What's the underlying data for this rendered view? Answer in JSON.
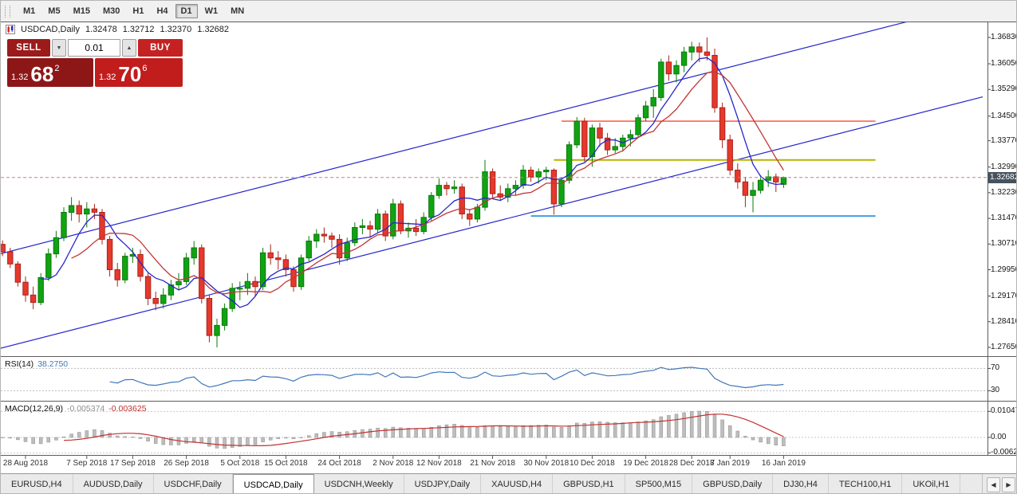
{
  "toolbar": {
    "timeframes": [
      "M1",
      "M5",
      "M15",
      "M30",
      "H1",
      "H4",
      "D1",
      "W1",
      "MN"
    ],
    "active_timeframe": "D1"
  },
  "window": {
    "symbol_title": "USDCAD,Daily",
    "ohlc": {
      "open": "1.32478",
      "high": "1.32712",
      "low": "1.32370",
      "close": "1.32682"
    }
  },
  "one_click": {
    "sell_label": "SELL",
    "buy_label": "BUY",
    "volume": "0.01",
    "sell_price": {
      "base": "1.32",
      "big": "68",
      "pip": "2"
    },
    "buy_price": {
      "base": "1.32",
      "big": "70",
      "pip": "6"
    }
  },
  "icons": {
    "spinner_down": "▼",
    "spinner_up": "▲",
    "tab_prev": "◀",
    "tab_next": "▶"
  },
  "price_scale": {
    "labels": [
      "1.36830",
      "1.36050",
      "1.35290",
      "1.34500",
      "1.33770",
      "1.32990",
      "1.32230",
      "1.31470",
      "1.30710",
      "1.29950",
      "1.29170",
      "1.28410",
      "1.27650"
    ],
    "current": "1.32682"
  },
  "rsi": {
    "name": "RSI(14)",
    "value": "38.2750",
    "scale": [
      "70",
      "30"
    ],
    "levels": [
      70,
      30
    ]
  },
  "macd": {
    "name": "MACD(12,26,9)",
    "values": [
      "-0.005374",
      "-0.003625"
    ],
    "scale": [
      "0.010474",
      "0.00",
      "-0.006218"
    ]
  },
  "tabs": {
    "items": [
      "EURUSD,H4",
      "AUDUSD,Daily",
      "USDCHF,Daily",
      "USDCAD,Daily",
      "USDCNH,Weekly",
      "USDJPY,Daily",
      "XAUUSD,H4",
      "GBPUSD,H1",
      "SP500,M15",
      "GBPUSD,Daily",
      "DJ30,H4",
      "TECH100,H1",
      "UKOil,H1"
    ],
    "active": "USDCAD,Daily"
  },
  "colors": {
    "bull": "#10a312",
    "bull_border": "#0b7a0c",
    "bear": "#e6382c",
    "bear_border": "#a8241c",
    "ma_fast": "#2626c9",
    "ma_slow": "#c23636",
    "channel": "#2525cd",
    "ray_red": "#ff4636",
    "ray_olive": "#b7b400",
    "ray_blue": "#3f9fe8",
    "rsi_line": "#4177b8",
    "macd_hist": "#bdbdbd",
    "macd_hist_border": "#8f8f8f",
    "macd_signal": "#c23030",
    "badge_bg": "#45525e",
    "accent_sell": "#9b1b1b",
    "accent_buy": "#c42222",
    "panel_sell": "#8d1717",
    "panel_buy": "#c11d1d",
    "last_price_line": "#c98080"
  },
  "chart_data": {
    "type": "candlestick",
    "symbol": "USDCAD",
    "timeframe": "Daily",
    "y_axis": {
      "min": 1.2743,
      "max": 1.3723,
      "grid": false
    },
    "x_tick_labels": [
      {
        "index": 3,
        "text": "28 Aug 2018"
      },
      {
        "index": 11,
        "text": "7 Sep 2018"
      },
      {
        "index": 17,
        "text": "17 Sep 2018"
      },
      {
        "index": 24,
        "text": "26 Sep 2018"
      },
      {
        "index": 31,
        "text": "5 Oct 2018"
      },
      {
        "index": 37,
        "text": "15 Oct 2018"
      },
      {
        "index": 44,
        "text": "24 Oct 2018"
      },
      {
        "index": 51,
        "text": "2 Nov 2018"
      },
      {
        "index": 57,
        "text": "12 Nov 2018"
      },
      {
        "index": 64,
        "text": "21 Nov 2018"
      },
      {
        "index": 71,
        "text": "30 Nov 2018"
      },
      {
        "index": 77,
        "text": "10 Dec 2018"
      },
      {
        "index": 84,
        "text": "19 Dec 2018"
      },
      {
        "index": 90,
        "text": "28 Dec 2018"
      },
      {
        "index": 95,
        "text": "7 Jan 2019"
      },
      {
        "index": 102,
        "text": "16 Jan 2019"
      }
    ],
    "candles": [
      [
        1.307,
        1.3082,
        1.3035,
        1.3048
      ],
      [
        1.3048,
        1.306,
        1.3,
        1.3012
      ],
      [
        1.3012,
        1.302,
        1.2945,
        1.2958
      ],
      [
        1.2958,
        1.2975,
        1.29,
        1.292
      ],
      [
        1.292,
        1.2945,
        1.2878,
        1.2898
      ],
      [
        1.2898,
        1.2985,
        1.289,
        1.2972
      ],
      [
        1.2972,
        1.3058,
        1.2962,
        1.3042
      ],
      [
        1.3042,
        1.311,
        1.303,
        1.309
      ],
      [
        1.309,
        1.318,
        1.308,
        1.3165
      ],
      [
        1.3165,
        1.321,
        1.314,
        1.3185
      ],
      [
        1.3185,
        1.32,
        1.3135,
        1.316
      ],
      [
        1.316,
        1.3195,
        1.312,
        1.3175
      ],
      [
        1.3175,
        1.319,
        1.3145,
        1.3165
      ],
      [
        1.3165,
        1.3175,
        1.307,
        1.3085
      ],
      [
        1.3085,
        1.3095,
        1.2975,
        1.2995
      ],
      [
        1.2995,
        1.3015,
        1.2945,
        1.2965
      ],
      [
        1.2965,
        1.3045,
        1.2955,
        1.3035
      ],
      [
        1.3035,
        1.306,
        1.3015,
        1.304
      ],
      [
        1.304,
        1.3055,
        1.296,
        1.2975
      ],
      [
        1.2975,
        1.2985,
        1.289,
        1.291
      ],
      [
        1.291,
        1.293,
        1.2875,
        1.2895
      ],
      [
        1.2895,
        1.294,
        1.288,
        1.292
      ],
      [
        1.292,
        1.2965,
        1.2905,
        1.295
      ],
      [
        1.295,
        1.2985,
        1.2935,
        1.296
      ],
      [
        1.296,
        1.3045,
        1.295,
        1.303
      ],
      [
        1.303,
        1.308,
        1.301,
        1.306
      ],
      [
        1.306,
        1.307,
        1.2895,
        1.291
      ],
      [
        1.291,
        1.292,
        1.278,
        1.28
      ],
      [
        1.28,
        1.285,
        1.2765,
        1.283
      ],
      [
        1.283,
        1.2895,
        1.2815,
        1.288
      ],
      [
        1.288,
        1.2955,
        1.287,
        1.294
      ],
      [
        1.294,
        1.296,
        1.2905,
        1.294
      ],
      [
        1.294,
        1.2985,
        1.292,
        1.296
      ],
      [
        1.296,
        1.2975,
        1.2915,
        1.2945
      ],
      [
        1.2945,
        1.306,
        1.2935,
        1.3045
      ],
      [
        1.3045,
        1.307,
        1.301,
        1.303
      ],
      [
        1.303,
        1.305,
        1.2995,
        1.3025
      ],
      [
        1.3025,
        1.304,
        1.2975,
        1.2995
      ],
      [
        1.2995,
        1.3005,
        1.293,
        1.2945
      ],
      [
        1.2945,
        1.304,
        1.2935,
        1.303
      ],
      [
        1.303,
        1.3095,
        1.302,
        1.308
      ],
      [
        1.308,
        1.3115,
        1.306,
        1.31
      ],
      [
        1.31,
        1.312,
        1.3075,
        1.3095
      ],
      [
        1.3095,
        1.3105,
        1.306,
        1.3085
      ],
      [
        1.3085,
        1.31,
        1.301,
        1.303
      ],
      [
        1.303,
        1.309,
        1.302,
        1.3075
      ],
      [
        1.3075,
        1.3135,
        1.3065,
        1.312
      ],
      [
        1.312,
        1.3145,
        1.31,
        1.3125
      ],
      [
        1.3125,
        1.314,
        1.309,
        1.3115
      ],
      [
        1.3115,
        1.3175,
        1.3105,
        1.316
      ],
      [
        1.316,
        1.317,
        1.308,
        1.3095
      ],
      [
        1.3095,
        1.3205,
        1.3085,
        1.319
      ],
      [
        1.319,
        1.32,
        1.31,
        1.311
      ],
      [
        1.311,
        1.3135,
        1.309,
        1.3118
      ],
      [
        1.3118,
        1.3145,
        1.3095,
        1.3108
      ],
      [
        1.3108,
        1.3165,
        1.31,
        1.315
      ],
      [
        1.315,
        1.3225,
        1.314,
        1.3215
      ],
      [
        1.3215,
        1.3265,
        1.3205,
        1.3245
      ],
      [
        1.3245,
        1.3255,
        1.3215,
        1.3235
      ],
      [
        1.3235,
        1.326,
        1.322,
        1.324
      ],
      [
        1.324,
        1.325,
        1.3145,
        1.316
      ],
      [
        1.316,
        1.3175,
        1.3125,
        1.3145
      ],
      [
        1.3145,
        1.319,
        1.3135,
        1.318
      ],
      [
        1.318,
        1.332,
        1.317,
        1.3285
      ],
      [
        1.3285,
        1.3295,
        1.3205,
        1.322
      ],
      [
        1.322,
        1.3245,
        1.32,
        1.321
      ],
      [
        1.321,
        1.325,
        1.3195,
        1.3235
      ],
      [
        1.3235,
        1.326,
        1.3215,
        1.3245
      ],
      [
        1.3245,
        1.3305,
        1.3235,
        1.329
      ],
      [
        1.329,
        1.33,
        1.3255,
        1.327
      ],
      [
        1.327,
        1.3295,
        1.325,
        1.3285
      ],
      [
        1.3285,
        1.33,
        1.326,
        1.329
      ],
      [
        1.329,
        1.3295,
        1.3158,
        1.319
      ],
      [
        1.319,
        1.327,
        1.318,
        1.326
      ],
      [
        1.326,
        1.3375,
        1.325,
        1.3365
      ],
      [
        1.3365,
        1.3447,
        1.3355,
        1.3435
      ],
      [
        1.3435,
        1.3445,
        1.3315,
        1.333
      ],
      [
        1.333,
        1.3425,
        1.33,
        1.3415
      ],
      [
        1.3415,
        1.343,
        1.336,
        1.3385
      ],
      [
        1.3385,
        1.34,
        1.3335,
        1.335
      ],
      [
        1.335,
        1.3385,
        1.334,
        1.336
      ],
      [
        1.336,
        1.3395,
        1.3345,
        1.3385
      ],
      [
        1.3385,
        1.341,
        1.336,
        1.3395
      ],
      [
        1.3395,
        1.3455,
        1.3385,
        1.3445
      ],
      [
        1.3445,
        1.3495,
        1.3435,
        1.348
      ],
      [
        1.348,
        1.353,
        1.3445,
        1.3505
      ],
      [
        1.3505,
        1.362,
        1.3495,
        1.361
      ],
      [
        1.361,
        1.363,
        1.3555,
        1.3575
      ],
      [
        1.3575,
        1.3615,
        1.355,
        1.36
      ],
      [
        1.36,
        1.3655,
        1.358,
        1.364
      ],
      [
        1.364,
        1.367,
        1.3615,
        1.3655
      ],
      [
        1.3655,
        1.3668,
        1.361,
        1.364
      ],
      [
        1.364,
        1.3683,
        1.3615,
        1.363
      ],
      [
        1.363,
        1.365,
        1.346,
        1.3475
      ],
      [
        1.3475,
        1.349,
        1.3355,
        1.338
      ],
      [
        1.338,
        1.3395,
        1.3275,
        1.329
      ],
      [
        1.329,
        1.331,
        1.3235,
        1.3255
      ],
      [
        1.3255,
        1.327,
        1.318,
        1.3215
      ],
      [
        1.3215,
        1.3255,
        1.3165,
        1.323
      ],
      [
        1.323,
        1.3275,
        1.322,
        1.326
      ],
      [
        1.326,
        1.329,
        1.324,
        1.327
      ],
      [
        1.327,
        1.328,
        1.3225,
        1.3255
      ],
      [
        1.32478,
        1.32712,
        1.3237,
        1.32682
      ]
    ],
    "overlays": {
      "last_price": 1.32682,
      "moving_averages": [
        {
          "period": 6,
          "color_key": "ma_fast"
        },
        {
          "period": 10,
          "color_key": "ma_slow"
        }
      ],
      "horizontal_rays": [
        {
          "price": 1.3435,
          "from_index": 73,
          "to_index": 114,
          "color_key": "ray_red",
          "width": 1.4
        },
        {
          "price": 1.332,
          "from_index": 72,
          "to_index": 114,
          "color_key": "ray_olive",
          "width": 2
        },
        {
          "price": 1.3154,
          "from_index": 69,
          "to_index": 114,
          "color_key": "ray_blue",
          "width": 2
        }
      ],
      "channel_lines": [
        {
          "from_index": -1,
          "from_price": 1.2758,
          "to_index": 128,
          "to_price": 1.3507
        },
        {
          "from_index": -1,
          "from_price": 1.3038,
          "to_index": 128,
          "to_price": 1.3787
        }
      ]
    },
    "indicators": {
      "rsi": {
        "period": 14,
        "last": 38.275
      },
      "macd": {
        "fast": 12,
        "slow": 26,
        "signal": 9,
        "last_main": -0.005374,
        "last_signal": -0.003625
      }
    }
  }
}
